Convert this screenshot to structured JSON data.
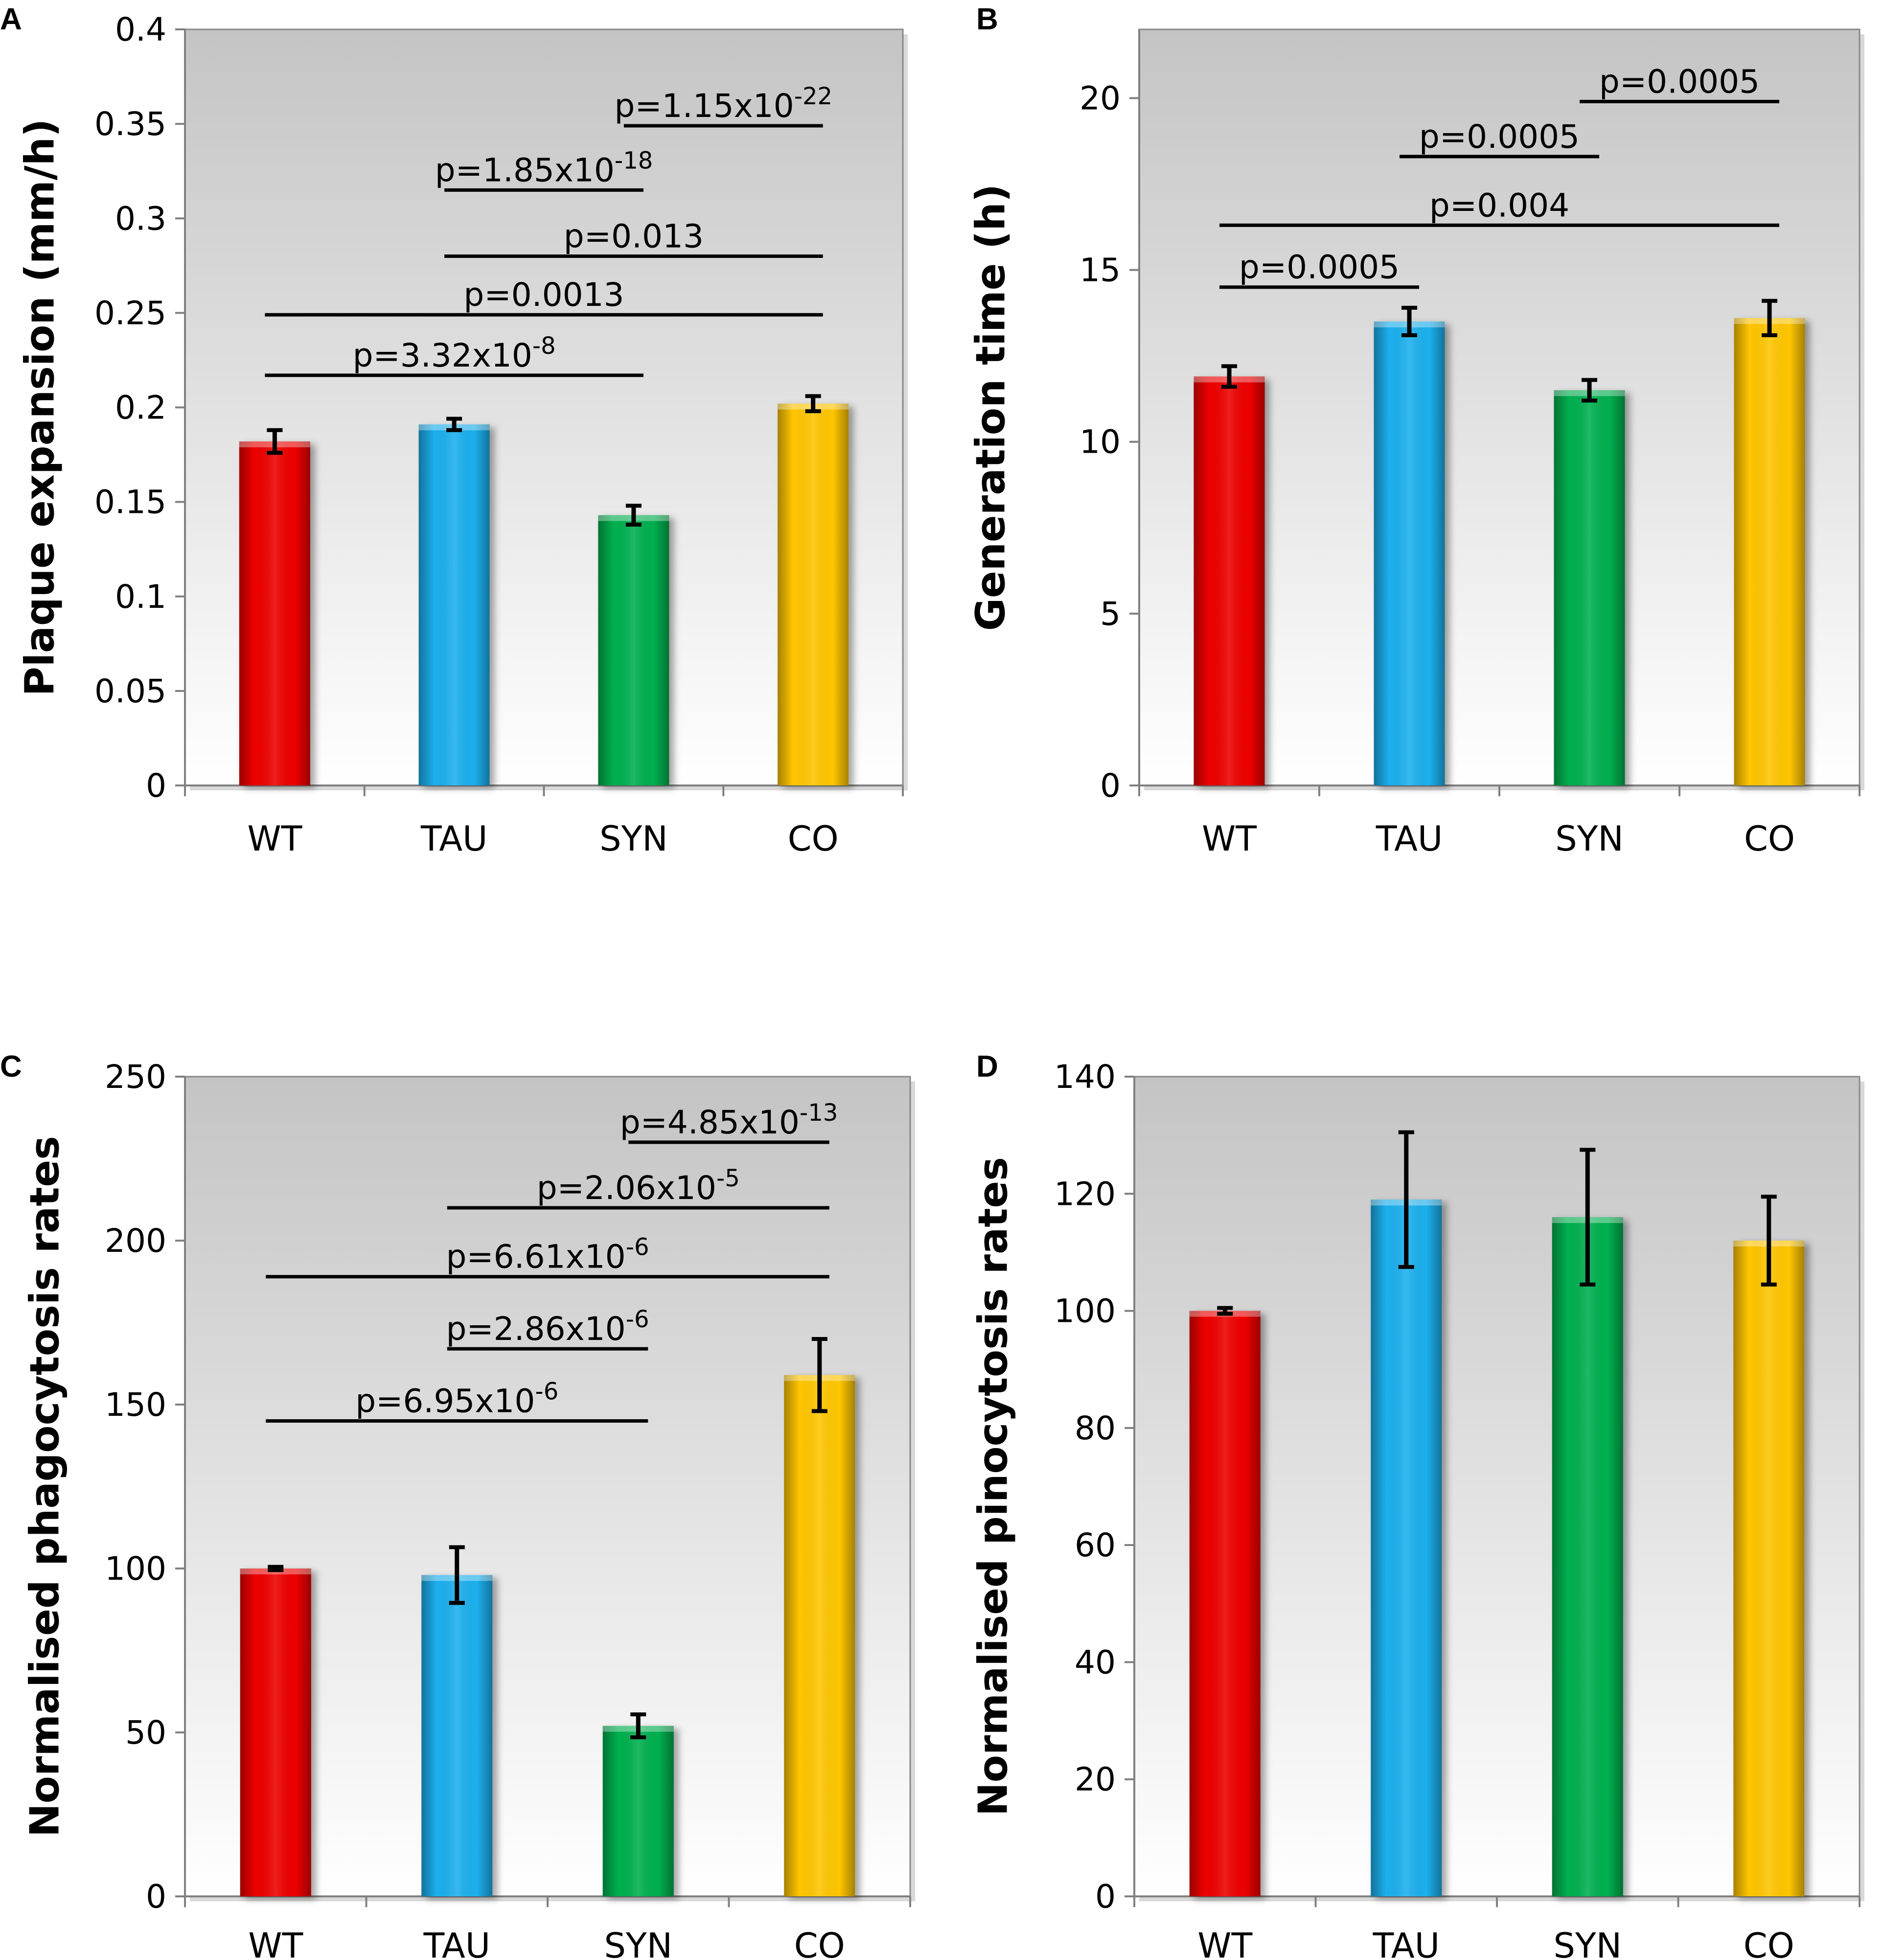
{
  "colors": {
    "WT": "#ee0000",
    "TAU": "#1fb0ee",
    "SYN": "#00b050",
    "CO": "#ffc600",
    "plot_top": "#c4c4c4",
    "plot_bottom": "#ffffff"
  },
  "chart_data": [
    {
      "panel": "A",
      "type": "bar",
      "ylabel": "Plaque expansion (mm/h)",
      "categories": [
        "WT",
        "TAU",
        "SYN",
        "CO"
      ],
      "values": [
        0.182,
        0.191,
        0.143,
        0.202
      ],
      "errors": [
        0.006,
        0.003,
        0.005,
        0.004
      ],
      "ylim": [
        0,
        0.4
      ],
      "yticks": [
        0,
        0.05,
        0.1,
        0.15,
        0.2,
        0.25,
        0.3,
        0.35,
        0.4
      ],
      "ytick_labels": [
        "0",
        "0.05",
        "0.1",
        "0.15",
        "0.2",
        "0.25",
        "0.3",
        "0.35",
        "0.4"
      ],
      "significance": [
        {
          "from": 0,
          "to": 2,
          "y": 0.217,
          "base": "p=3.32x10",
          "exp": "-8"
        },
        {
          "from": 0,
          "to": 3,
          "y": 0.249,
          "base": "p=0.0013",
          "exp": ""
        },
        {
          "from": 1,
          "to": 3,
          "y": 0.28,
          "base": "p=0.013",
          "exp": ""
        },
        {
          "from": 1,
          "to": 2,
          "y": 0.315,
          "base": "p=1.85x10",
          "exp": "-18"
        },
        {
          "from": 2,
          "to": 3,
          "y": 0.349,
          "base": "p=1.15x10",
          "exp": "-22"
        }
      ]
    },
    {
      "panel": "B",
      "type": "bar",
      "ylabel": "Generation time (h)",
      "categories": [
        "WT",
        "TAU",
        "SYN",
        "CO"
      ],
      "values": [
        11.9,
        13.5,
        11.5,
        13.6
      ],
      "errors": [
        0.3,
        0.4,
        0.3,
        0.5
      ],
      "ylim": [
        0,
        22
      ],
      "yticks": [
        0,
        5,
        10,
        15,
        20
      ],
      "ytick_labels": [
        "0",
        "5",
        "10",
        "15",
        "20"
      ],
      "significance": [
        {
          "from": 0,
          "to": 1,
          "y": 14.5,
          "base": "p=0.0005",
          "exp": ""
        },
        {
          "from": 0,
          "to": 3,
          "y": 16.3,
          "base": "p=0.004",
          "exp": ""
        },
        {
          "from": 1,
          "to": 2,
          "y": 18.3,
          "base": "p=0.0005",
          "exp": ""
        },
        {
          "from": 2,
          "to": 3,
          "y": 19.9,
          "base": "p=0.0005",
          "exp": ""
        }
      ]
    },
    {
      "panel": "C",
      "type": "bar",
      "ylabel": "Normalised phagocytosis rates",
      "categories": [
        "WT",
        "TAU",
        "SYN",
        "CO"
      ],
      "values": [
        100,
        98,
        52,
        159
      ],
      "errors": [
        0.5,
        8.5,
        3.5,
        11
      ],
      "ylim": [
        0,
        250
      ],
      "yticks": [
        0,
        50,
        100,
        150,
        200,
        250
      ],
      "ytick_labels": [
        "0",
        "50",
        "100",
        "150",
        "200",
        "250"
      ],
      "significance": [
        {
          "from": 0,
          "to": 2,
          "y": 145,
          "base": "p=6.95x10",
          "exp": "-6"
        },
        {
          "from": 1,
          "to": 2,
          "y": 167,
          "base": "p=2.86x10",
          "exp": "-6"
        },
        {
          "from": 0,
          "to": 3,
          "y": 189,
          "base": "p=6.61x10",
          "exp": "-6"
        },
        {
          "from": 1,
          "to": 3,
          "y": 210,
          "base": "p=2.06x10",
          "exp": "-5"
        },
        {
          "from": 2,
          "to": 3,
          "y": 230,
          "base": "p=4.85x10",
          "exp": "-13"
        }
      ]
    },
    {
      "panel": "D",
      "type": "bar",
      "ylabel": "Normalised pinocytosis rates",
      "categories": [
        "WT",
        "TAU",
        "SYN",
        "CO"
      ],
      "values": [
        100,
        119,
        116,
        112
      ],
      "errors": [
        0.5,
        11.5,
        11.5,
        7.5
      ],
      "ylim": [
        0,
        140
      ],
      "yticks": [
        0,
        20,
        40,
        60,
        80,
        100,
        120,
        140
      ],
      "ytick_labels": [
        "0",
        "20",
        "40",
        "60",
        "80",
        "100",
        "120",
        "140"
      ],
      "significance": []
    }
  ]
}
